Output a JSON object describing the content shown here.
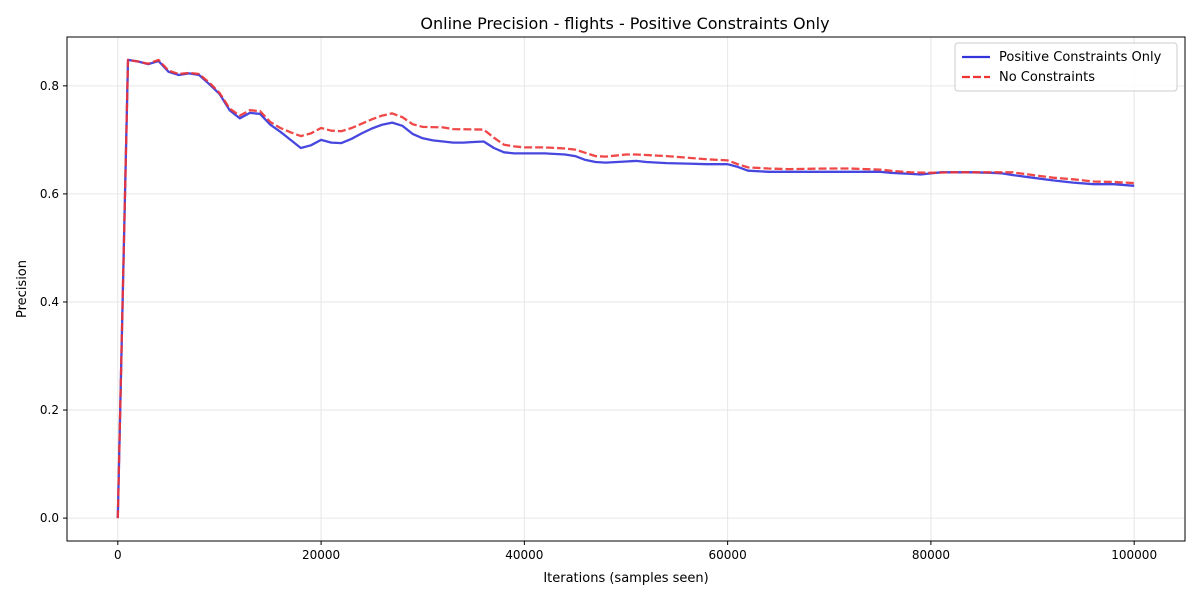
{
  "chart_data": {
    "type": "line",
    "title": "Online Precision - flights - Positive Constraints Only",
    "xlabel": "Iterations (samples seen)",
    "ylabel": "Precision",
    "xlim": [
      -5000,
      105000
    ],
    "ylim": [
      -0.0424,
      0.8904
    ],
    "xticks": [
      0,
      20000,
      40000,
      60000,
      80000,
      100000
    ],
    "xtick_labels": [
      "0",
      "20000",
      "40000",
      "60000",
      "80000",
      "100000"
    ],
    "yticks": [
      0.0,
      0.2,
      0.4,
      0.6,
      0.8
    ],
    "ytick_labels": [
      "0.0",
      "0.2",
      "0.4",
      "0.6",
      "0.8"
    ],
    "grid": true,
    "legend_position": "top-right",
    "series": [
      {
        "name": "Positive Constraints Only",
        "color": "#3333dd",
        "style": "solid",
        "x": [
          0,
          1000,
          2000,
          3000,
          4000,
          5000,
          6000,
          7000,
          8000,
          9000,
          10000,
          11000,
          12000,
          13000,
          14000,
          15000,
          16000,
          17000,
          18000,
          19000,
          20000,
          21000,
          22000,
          23000,
          24000,
          25000,
          26000,
          27000,
          28000,
          29000,
          30000,
          31000,
          32000,
          33000,
          34000,
          35000,
          36000,
          37000,
          38000,
          39000,
          40000,
          42000,
          44000,
          45000,
          46000,
          47000,
          48000,
          50000,
          51000,
          52000,
          54000,
          56000,
          58000,
          60000,
          61000,
          62000,
          64000,
          66000,
          70000,
          72000,
          75000,
          76000,
          78000,
          79000,
          80000,
          81000,
          82000,
          84000,
          86000,
          87000,
          88000,
          90000,
          92000,
          94000,
          96000,
          98000,
          100000
        ],
        "y": [
          0.0,
          0.848,
          0.845,
          0.84,
          0.846,
          0.826,
          0.82,
          0.823,
          0.82,
          0.803,
          0.785,
          0.755,
          0.74,
          0.75,
          0.748,
          0.728,
          0.715,
          0.7,
          0.685,
          0.69,
          0.7,
          0.695,
          0.694,
          0.702,
          0.712,
          0.721,
          0.728,
          0.732,
          0.726,
          0.711,
          0.703,
          0.699,
          0.697,
          0.695,
          0.695,
          0.696,
          0.697,
          0.685,
          0.677,
          0.675,
          0.675,
          0.675,
          0.673,
          0.67,
          0.663,
          0.659,
          0.658,
          0.66,
          0.661,
          0.659,
          0.657,
          0.656,
          0.655,
          0.655,
          0.65,
          0.643,
          0.641,
          0.641,
          0.641,
          0.641,
          0.641,
          0.639,
          0.637,
          0.636,
          0.638,
          0.64,
          0.64,
          0.64,
          0.639,
          0.638,
          0.635,
          0.63,
          0.625,
          0.621,
          0.618,
          0.618,
          0.615
        ]
      },
      {
        "name": "No Constraints",
        "color": "#ee3333",
        "style": "dashed",
        "x": [
          0,
          1000,
          2000,
          3000,
          4000,
          5000,
          6000,
          7000,
          8000,
          9000,
          10000,
          11000,
          12000,
          13000,
          14000,
          15000,
          16000,
          17000,
          18000,
          19000,
          20000,
          21000,
          22000,
          23000,
          24000,
          25000,
          26000,
          27000,
          28000,
          29000,
          30000,
          32000,
          33000,
          36000,
          37000,
          38000,
          39000,
          40000,
          42000,
          44000,
          45000,
          46000,
          47000,
          48000,
          50000,
          51000,
          54000,
          56000,
          58000,
          60000,
          61000,
          62000,
          64000,
          66000,
          70000,
          72000,
          75000,
          76000,
          78000,
          80000,
          82000,
          84000,
          86000,
          88000,
          90000,
          92000,
          94000,
          96000,
          98000,
          100000
        ],
        "y": [
          0.0,
          0.848,
          0.845,
          0.841,
          0.848,
          0.828,
          0.822,
          0.824,
          0.822,
          0.806,
          0.787,
          0.758,
          0.745,
          0.755,
          0.753,
          0.733,
          0.722,
          0.714,
          0.707,
          0.712,
          0.722,
          0.717,
          0.716,
          0.722,
          0.73,
          0.738,
          0.745,
          0.749,
          0.742,
          0.729,
          0.724,
          0.723,
          0.72,
          0.719,
          0.704,
          0.691,
          0.688,
          0.686,
          0.686,
          0.684,
          0.682,
          0.676,
          0.67,
          0.669,
          0.673,
          0.673,
          0.67,
          0.667,
          0.664,
          0.662,
          0.655,
          0.649,
          0.647,
          0.646,
          0.647,
          0.647,
          0.645,
          0.643,
          0.64,
          0.639,
          0.64,
          0.64,
          0.64,
          0.64,
          0.635,
          0.63,
          0.627,
          0.623,
          0.622,
          0.62
        ]
      }
    ]
  }
}
